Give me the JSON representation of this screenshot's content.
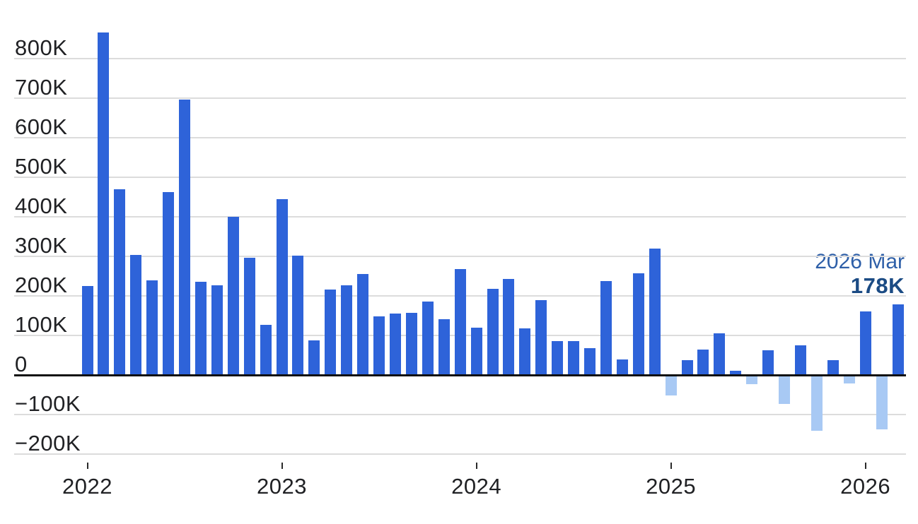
{
  "chart_data": {
    "type": "bar",
    "title": "",
    "unit": "thousands",
    "categories": [
      "2022 Jan",
      "2022 Feb",
      "2022 Mar",
      "2022 Apr",
      "2022 May",
      "2022 Jun",
      "2022 Jul",
      "2022 Aug",
      "2022 Sep",
      "2022 Oct",
      "2022 Nov",
      "2022 Dec",
      "2023 Jan",
      "2023 Feb",
      "2023 Mar",
      "2023 Apr",
      "2023 May",
      "2023 Jun",
      "2023 Jul",
      "2023 Aug",
      "2023 Sep",
      "2023 Oct",
      "2023 Nov",
      "2023 Dec",
      "2024 Jan",
      "2024 Feb",
      "2024 Mar",
      "2024 Apr",
      "2024 May",
      "2024 Jun",
      "2024 Jul",
      "2024 Aug",
      "2024 Sep",
      "2024 Oct",
      "2024 Nov",
      "2024 Dec",
      "2025 Jan",
      "2025 Feb",
      "2025 Mar",
      "2025 Apr",
      "2025 May",
      "2025 Jun",
      "2025 Jul",
      "2025 Aug",
      "2025 Sep",
      "2025 Oct",
      "2025 Nov",
      "2025 Dec",
      "2026 Jan",
      "2026 Feb",
      "2026 Mar"
    ],
    "values": [
      225,
      866,
      470,
      304,
      240,
      462,
      696,
      236,
      227,
      400,
      296,
      127,
      445,
      301,
      87,
      216,
      227,
      255,
      148,
      156,
      158,
      186,
      141,
      268,
      119,
      218,
      242,
      117,
      190,
      85,
      86,
      68,
      237,
      40,
      258,
      320,
      -50,
      38,
      65,
      106,
      11,
      -22,
      62,
      -72,
      75,
      -140,
      38,
      -20,
      161,
      -136,
      178
    ],
    "y_ticks": [
      {
        "label": "800K",
        "value": 800
      },
      {
        "label": "700K",
        "value": 700
      },
      {
        "label": "600K",
        "value": 600
      },
      {
        "label": "500K",
        "value": 500
      },
      {
        "label": "400K",
        "value": 400
      },
      {
        "label": "300K",
        "value": 300
      },
      {
        "label": "200K",
        "value": 200
      },
      {
        "label": "100K",
        "value": 100
      },
      {
        "label": "0",
        "value": 0
      },
      {
        "label": "−100K",
        "value": -100
      },
      {
        "label": "−200K",
        "value": -200
      }
    ],
    "x_ticks": [
      {
        "label": "2022",
        "month_index": 0
      },
      {
        "label": "2023",
        "month_index": 12
      },
      {
        "label": "2024",
        "month_index": 24
      },
      {
        "label": "2025",
        "month_index": 36
      },
      {
        "label": "2026",
        "month_index": 48
      }
    ],
    "ylim": [
      -250,
      900
    ],
    "grid": true,
    "legend": false,
    "annotation": {
      "period": "2026 Mar",
      "value_label": "178K"
    },
    "colors": {
      "positive_bar": "#2e63d9",
      "negative_bar": "#a8c9f4",
      "annotation_period": "#2e5fa8",
      "annotation_value": "#1b4b84",
      "gridline": "#dcdcdc",
      "axis_line": "#101010",
      "axis_label": "#202124"
    }
  }
}
